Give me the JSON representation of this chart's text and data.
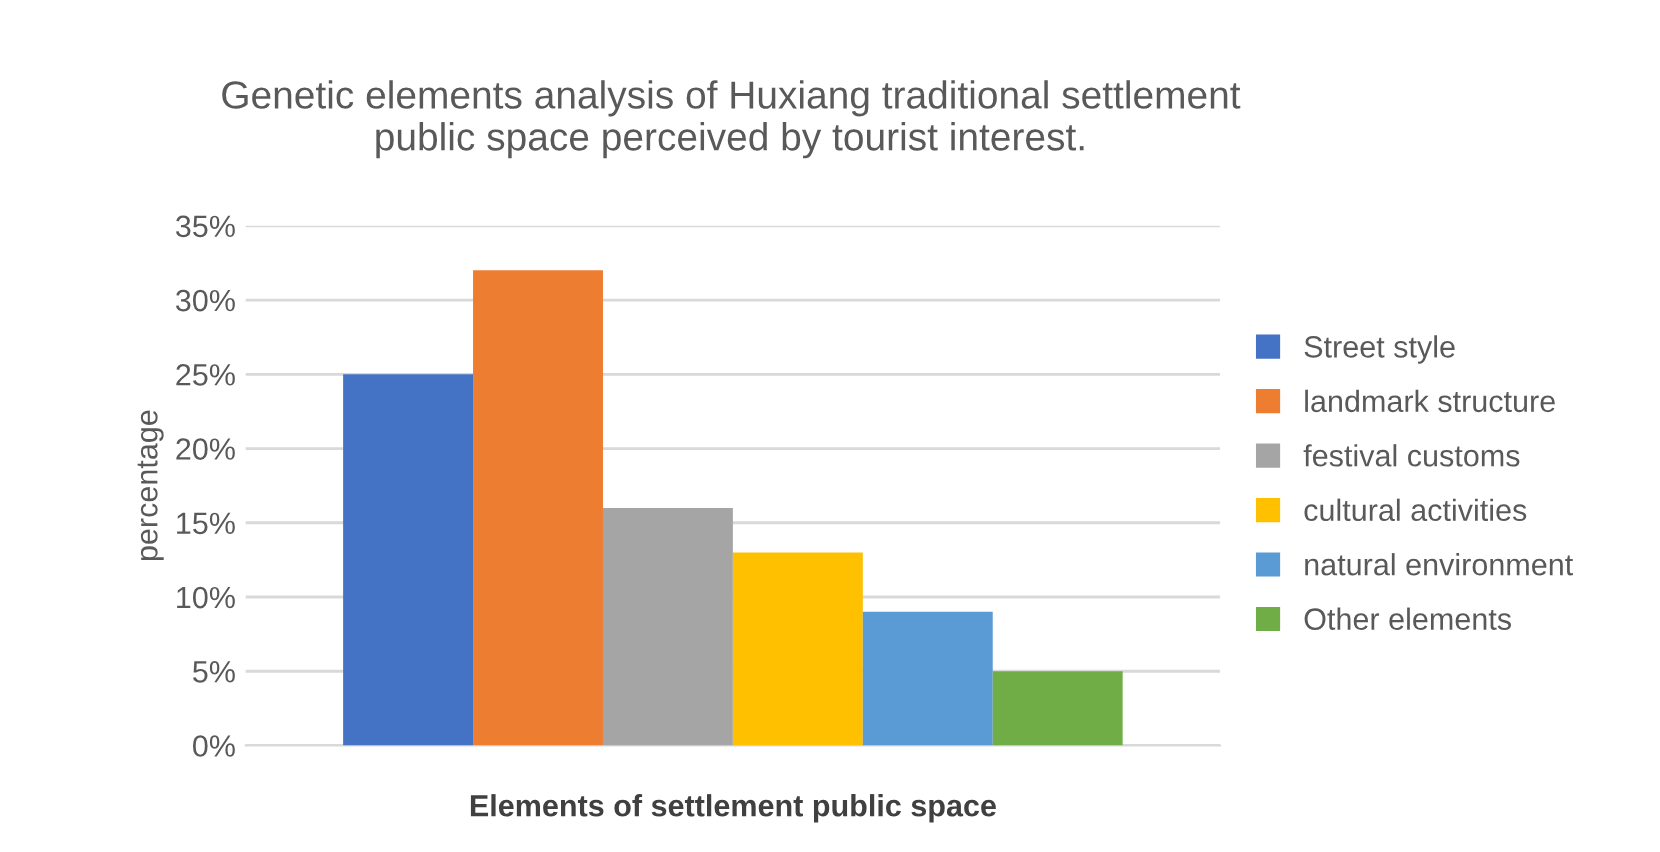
{
  "chart_data": {
    "type": "bar",
    "title": "Genetic elements analysis of Huxiang traditional settlement\npublic space perceived by tourist interest.",
    "xlabel": "Elements of settlement public space",
    "ylabel": "percentage",
    "categories": [
      null
    ],
    "series": [
      {
        "name": "Street style",
        "color": "#4472c4",
        "values": [
          25
        ]
      },
      {
        "name": "landmark structure",
        "color": "#ed7d31",
        "values": [
          32
        ]
      },
      {
        "name": "festival customs",
        "color": "#a5a5a5",
        "values": [
          16
        ]
      },
      {
        "name": "cultural activities",
        "color": "#ffc000",
        "values": [
          13
        ]
      },
      {
        "name": "natural environment",
        "color": "#5b9bd5",
        "values": [
          9
        ]
      },
      {
        "name": "Other elements",
        "color": "#70ad47",
        "values": [
          5
        ]
      }
    ],
    "ylim": [
      0,
      35
    ],
    "yticks": [
      {
        "value": 0,
        "label": "0%"
      },
      {
        "value": 5,
        "label": "5%"
      },
      {
        "value": 10,
        "label": "10%"
      },
      {
        "value": 15,
        "label": "15%"
      },
      {
        "value": 20,
        "label": "20%"
      },
      {
        "value": 25,
        "label": "25%"
      },
      {
        "value": 30,
        "label": "30%"
      },
      {
        "value": 35,
        "label": "35%"
      }
    ],
    "grid": "y",
    "legend": "right"
  }
}
